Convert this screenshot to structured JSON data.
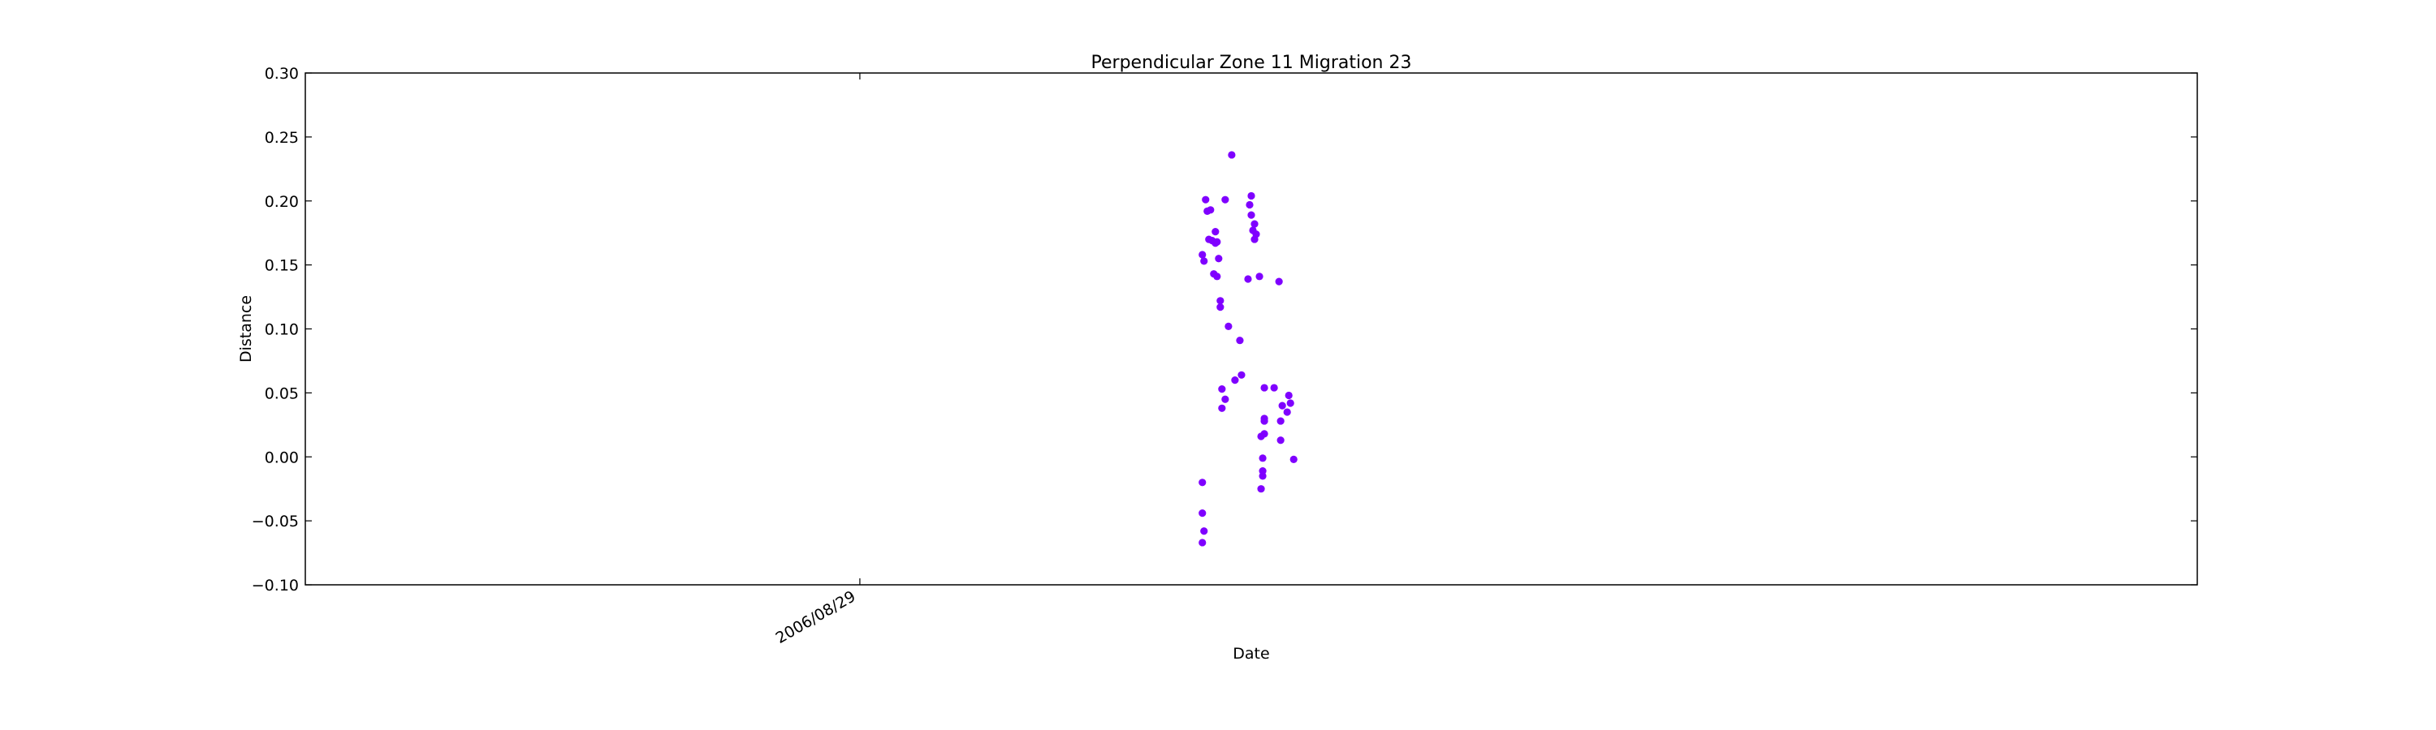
{
  "chart_data": {
    "type": "scatter",
    "title": "Perpendicular Zone 11 Migration 23",
    "xlabel": "Date",
    "ylabel": "Distance",
    "ylim": [
      -0.1,
      0.3
    ],
    "yticks": [
      "0.30",
      "0.25",
      "0.20",
      "0.15",
      "0.10",
      "0.05",
      "0.00",
      "−0.05",
      "−0.10"
    ],
    "xticks": [
      {
        "label": "2006/08/29",
        "x": 0
      }
    ],
    "xlim": [
      -0.34,
      0.82
    ],
    "grid": false,
    "marker_color": "#7f00ff",
    "points": [
      {
        "x": 0.21,
        "y": 0.158
      },
      {
        "x": 0.211,
        "y": 0.153
      },
      {
        "x": 0.212,
        "y": 0.201
      },
      {
        "x": 0.213,
        "y": 0.192
      },
      {
        "x": 0.214,
        "y": 0.17
      },
      {
        "x": 0.215,
        "y": 0.193
      },
      {
        "x": 0.216,
        "y": 0.169
      },
      {
        "x": 0.217,
        "y": 0.143
      },
      {
        "x": 0.218,
        "y": 0.167
      },
      {
        "x": 0.218,
        "y": 0.176
      },
      {
        "x": 0.219,
        "y": 0.141
      },
      {
        "x": 0.219,
        "y": 0.168
      },
      {
        "x": 0.22,
        "y": 0.155
      },
      {
        "x": 0.221,
        "y": 0.122
      },
      {
        "x": 0.221,
        "y": 0.117
      },
      {
        "x": 0.222,
        "y": 0.053
      },
      {
        "x": 0.222,
        "y": 0.038
      },
      {
        "x": 0.224,
        "y": 0.045
      },
      {
        "x": 0.224,
        "y": 0.201
      },
      {
        "x": 0.226,
        "y": 0.102
      },
      {
        "x": 0.228,
        "y": 0.236
      },
      {
        "x": 0.23,
        "y": 0.06
      },
      {
        "x": 0.233,
        "y": 0.091
      },
      {
        "x": 0.234,
        "y": 0.064
      },
      {
        "x": 0.238,
        "y": 0.139
      },
      {
        "x": 0.239,
        "y": 0.197
      },
      {
        "x": 0.24,
        "y": 0.189
      },
      {
        "x": 0.24,
        "y": 0.204
      },
      {
        "x": 0.241,
        "y": 0.177
      },
      {
        "x": 0.242,
        "y": 0.182
      },
      {
        "x": 0.242,
        "y": 0.17
      },
      {
        "x": 0.243,
        "y": 0.174
      },
      {
        "x": 0.245,
        "y": 0.141
      },
      {
        "x": 0.246,
        "y": 0.016
      },
      {
        "x": 0.246,
        "y": -0.025
      },
      {
        "x": 0.247,
        "y": -0.015
      },
      {
        "x": 0.247,
        "y": -0.011
      },
      {
        "x": 0.247,
        "y": -0.001
      },
      {
        "x": 0.248,
        "y": 0.018
      },
      {
        "x": 0.248,
        "y": 0.03
      },
      {
        "x": 0.248,
        "y": 0.028
      },
      {
        "x": 0.248,
        "y": 0.054
      },
      {
        "x": 0.254,
        "y": 0.054
      },
      {
        "x": 0.257,
        "y": 0.137
      },
      {
        "x": 0.258,
        "y": 0.028
      },
      {
        "x": 0.258,
        "y": 0.013
      },
      {
        "x": 0.259,
        "y": 0.04
      },
      {
        "x": 0.262,
        "y": 0.035
      },
      {
        "x": 0.263,
        "y": 0.048
      },
      {
        "x": 0.264,
        "y": 0.042
      },
      {
        "x": 0.266,
        "y": -0.002
      },
      {
        "x": 0.21,
        "y": -0.02
      },
      {
        "x": 0.21,
        "y": -0.044
      },
      {
        "x": 0.211,
        "y": -0.058
      },
      {
        "x": 0.21,
        "y": -0.067
      }
    ]
  }
}
